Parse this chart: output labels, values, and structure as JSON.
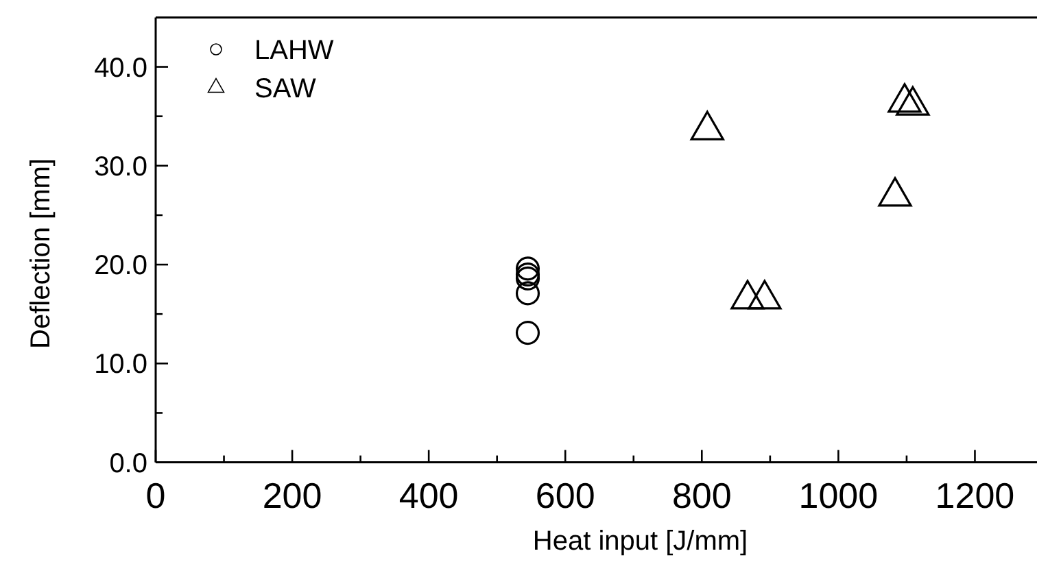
{
  "chart_data": {
    "type": "scatter",
    "xlabel": "Heat input [J/mm]",
    "ylabel": "Deflection [mm]",
    "xlim": [
      0,
      1300
    ],
    "ylim": [
      0,
      45
    ],
    "xticks": [
      0,
      {
        "value": 100,
        "label": null
      },
      200,
      {
        "value": 300,
        "label": null
      },
      400,
      {
        "value": 500,
        "label": null
      },
      600,
      {
        "value": 700,
        "label": null
      },
      800,
      {
        "value": 900,
        "label": null
      },
      1000,
      {
        "value": 1100,
        "label": null
      },
      1200
    ],
    "yticks": [
      {
        "value": 0,
        "label": "0.0"
      },
      {
        "value": 5,
        "label": null
      },
      {
        "value": 10,
        "label": "10.0"
      },
      {
        "value": 15,
        "label": null
      },
      {
        "value": 20,
        "label": "20.0"
      },
      {
        "value": 25,
        "label": null
      },
      {
        "value": 30,
        "label": "30.0"
      },
      {
        "value": 35,
        "label": null
      },
      {
        "value": 40,
        "label": "40.0"
      }
    ],
    "grid": false,
    "legend": "top left",
    "series": [
      {
        "name": "LAHW",
        "color": "#000000",
        "marker": "circle",
        "x": [
          545,
          545,
          545,
          545,
          545
        ],
        "values": [
          13.1,
          17.1,
          18.6,
          19.0,
          19.6
        ]
      },
      {
        "name": "SAW",
        "color": "#000000",
        "marker": "triangle",
        "x": [
          808,
          867,
          892,
          1083,
          1097,
          1109
        ],
        "values": [
          33.6,
          16.5,
          16.5,
          26.9,
          36.4,
          36.1
        ]
      }
    ]
  }
}
